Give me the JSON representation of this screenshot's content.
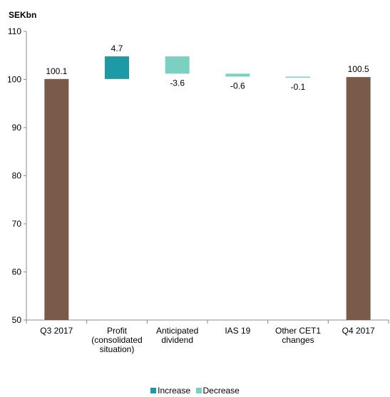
{
  "chart_data": {
    "type": "bar",
    "subtype": "waterfall",
    "unit_label": "SEKbn",
    "ylim": [
      50,
      110
    ],
    "yticks": [
      50,
      60,
      70,
      80,
      90,
      100,
      110
    ],
    "grid": false,
    "legend_position": "bottom",
    "categories": [
      [
        "Q3 2017"
      ],
      [
        "Profit",
        "(consolidated",
        "situation)"
      ],
      [
        "Anticipated",
        "dividend"
      ],
      [
        "IAS 19"
      ],
      [
        "Other CET1",
        "changes"
      ],
      [
        "Q4 2017"
      ]
    ],
    "bars": [
      {
        "kind": "total",
        "start": 50,
        "end": 100.1,
        "label": "100.1"
      },
      {
        "kind": "increase",
        "start": 100.1,
        "end": 104.8,
        "label": "4.7"
      },
      {
        "kind": "decrease",
        "start": 104.8,
        "end": 101.2,
        "label": "-3.6"
      },
      {
        "kind": "decrease",
        "start": 101.2,
        "end": 100.6,
        "label": "-0.6"
      },
      {
        "kind": "decrease",
        "start": 100.6,
        "end": 100.5,
        "label": "-0.1"
      },
      {
        "kind": "total",
        "start": 50,
        "end": 100.5,
        "label": "100.5"
      }
    ],
    "legend": [
      {
        "name": "Increase",
        "key": "increase"
      },
      {
        "name": "Decrease",
        "key": "decrease"
      }
    ],
    "colors": {
      "total": "#7a5b4a",
      "increase": "#1e9aa6",
      "decrease": "#7ad1c2",
      "axis": "#8c8c8c"
    }
  }
}
